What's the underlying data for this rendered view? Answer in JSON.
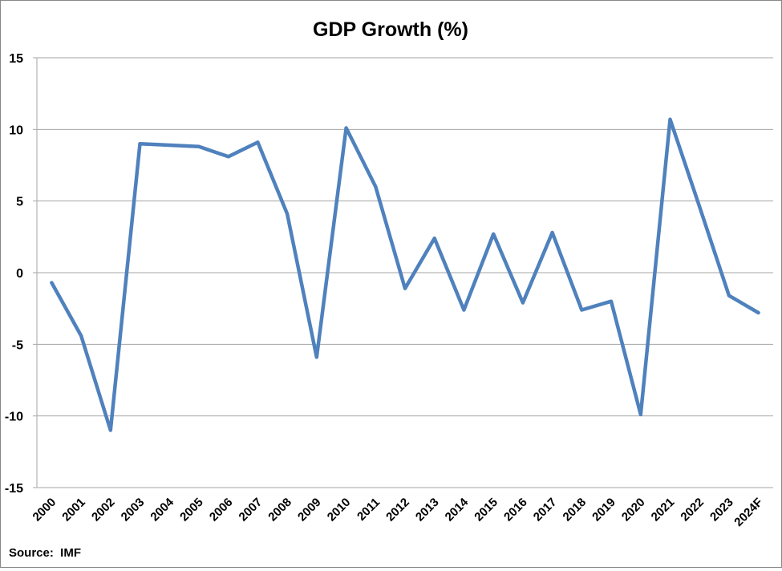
{
  "chart_data": {
    "type": "line",
    "title": "GDP Growth (%)",
    "xlabel": "",
    "ylabel": "",
    "categories": [
      "2000",
      "2001",
      "2002",
      "2003",
      "2004",
      "2005",
      "2006",
      "2007",
      "2008",
      "2009",
      "2010",
      "2011",
      "2012",
      "2013",
      "2014",
      "2015",
      "2016",
      "2017",
      "2018",
      "2019",
      "2020",
      "2021",
      "2022",
      "2023",
      "2024F"
    ],
    "values": [
      -0.7,
      -4.4,
      -11.0,
      9.0,
      8.9,
      8.8,
      8.1,
      9.1,
      4.1,
      -5.9,
      10.1,
      6.0,
      -1.1,
      2.4,
      -2.6,
      2.7,
      -2.1,
      2.8,
      -2.6,
      -2.0,
      -9.9,
      10.7,
      4.6,
      -1.6,
      -2.8
    ],
    "ylim": [
      -15,
      15
    ],
    "yticks": [
      15,
      10,
      5,
      0,
      -5,
      -10,
      -15
    ],
    "grid": "horizontal",
    "line_color": "#4F81BD",
    "source": "Source:  IMF"
  }
}
